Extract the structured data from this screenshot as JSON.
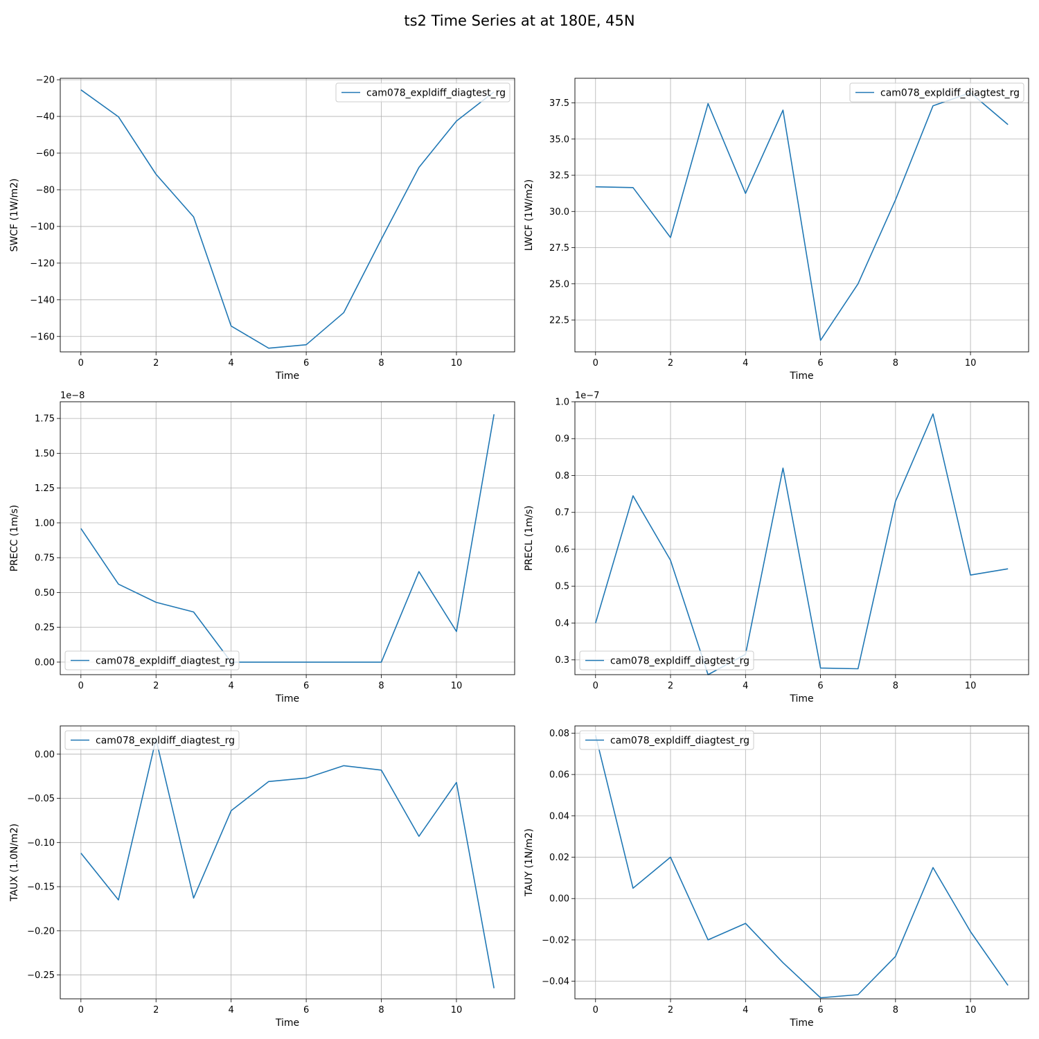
{
  "figure": {
    "title": "ts2 Time Series at at 180E, 45N"
  },
  "chart_data": [
    {
      "type": "line",
      "xlabel": "Time",
      "ylabel": "SWCF (1W/m2)",
      "y_inverted": true,
      "offset_text": "",
      "legend_loc": "upper right",
      "xlim": [
        -0.55,
        11.55
      ],
      "ylim": [
        -19.2,
        -168.4
      ],
      "xticks": [
        0,
        2,
        4,
        6,
        8,
        10
      ],
      "yticks": [
        -20,
        -40,
        -60,
        -80,
        -100,
        -120,
        -140,
        -160
      ],
      "ytick_labels": [
        "−20",
        "−40",
        "−60",
        "−80",
        "−100",
        "−120",
        "−140",
        "−160"
      ],
      "grid": true,
      "series": [
        {
          "name": "cam078_expldiff_diagtest_rg",
          "color": "#1f77b4",
          "x": [
            0,
            1,
            2,
            3,
            4,
            5,
            6,
            7,
            8,
            9,
            10,
            11
          ],
          "y": [
            -25.5,
            -40.2,
            -71.5,
            -94.8,
            -154.3,
            -166.4,
            -164.5,
            -147.0,
            -107.0,
            -67.8,
            -42.5,
            -26.6
          ]
        }
      ]
    },
    {
      "type": "line",
      "xlabel": "Time",
      "ylabel": "LWCF (1W/m2)",
      "y_inverted": true,
      "offset_text": "",
      "legend_loc": "upper right",
      "xlim": [
        -0.55,
        11.55
      ],
      "ylim": [
        39.2,
        20.3
      ],
      "xticks": [
        0,
        2,
        4,
        6,
        8,
        10
      ],
      "yticks": [
        22.5,
        25.0,
        27.5,
        30.0,
        32.5,
        35.0,
        37.5
      ],
      "ytick_labels": [
        "22.5",
        "25.0",
        "27.5",
        "30.0",
        "32.5",
        "35.0",
        "37.5"
      ],
      "grid": true,
      "series": [
        {
          "name": "cam078_expldiff_diagtest_rg",
          "color": "#1f77b4",
          "x": [
            0,
            1,
            2,
            3,
            4,
            5,
            6,
            7,
            8,
            9,
            10,
            11
          ],
          "y": [
            31.7,
            31.65,
            28.2,
            37.45,
            31.25,
            37.0,
            21.1,
            25.0,
            30.8,
            37.3,
            38.2,
            36.0
          ]
        }
      ]
    },
    {
      "type": "line",
      "xlabel": "Time",
      "ylabel": "PRECC (1m/s)",
      "y_inverted": true,
      "offset_text": "1e−8",
      "legend_loc": "lower left",
      "xlim": [
        -0.55,
        11.55
      ],
      "ylim": [
        1.87,
        -0.09
      ],
      "xticks": [
        0,
        2,
        4,
        6,
        8,
        10
      ],
      "yticks": [
        0.0,
        0.25,
        0.5,
        0.75,
        1.0,
        1.25,
        1.5,
        1.75
      ],
      "ytick_labels": [
        "0.00",
        "0.25",
        "0.50",
        "0.75",
        "1.00",
        "1.25",
        "1.50",
        "1.75"
      ],
      "grid": true,
      "series": [
        {
          "name": "cam078_expldiff_diagtest_rg",
          "color": "#1f77b4",
          "x": [
            0,
            1,
            2,
            3,
            4,
            5,
            6,
            7,
            8,
            9,
            10,
            11
          ],
          "y": [
            0.96,
            0.56,
            0.43,
            0.36,
            0.0,
            0.0,
            0.0,
            0.0,
            0.0,
            0.65,
            0.22,
            1.78
          ]
        }
      ]
    },
    {
      "type": "line",
      "xlabel": "Time",
      "ylabel": "PRECL (1m/s)",
      "y_inverted": true,
      "offset_text": "1e−7",
      "legend_loc": "lower left",
      "xlim": [
        -0.55,
        11.55
      ],
      "ylim": [
        1.0,
        0.26
      ],
      "xticks": [
        0,
        2,
        4,
        6,
        8,
        10
      ],
      "yticks": [
        0.3,
        0.4,
        0.5,
        0.6,
        0.7,
        0.8,
        0.9,
        1.0
      ],
      "ytick_labels": [
        "0.3",
        "0.4",
        "0.5",
        "0.6",
        "0.7",
        "0.8",
        "0.9",
        "1.0"
      ],
      "grid": true,
      "series": [
        {
          "name": "cam078_expldiff_diagtest_rg",
          "color": "#1f77b4",
          "x": [
            0,
            1,
            2,
            3,
            4,
            5,
            6,
            7,
            8,
            9,
            10,
            11
          ],
          "y": [
            0.4,
            0.745,
            0.57,
            0.26,
            0.315,
            0.82,
            0.278,
            0.276,
            0.73,
            0.967,
            0.53,
            0.547
          ]
        }
      ]
    },
    {
      "type": "line",
      "xlabel": "Time",
      "ylabel": "TAUX (1.0N/m2)",
      "y_inverted": true,
      "offset_text": "",
      "legend_loc": "upper left",
      "xlim": [
        -0.55,
        11.55
      ],
      "ylim": [
        0.032,
        -0.277
      ],
      "xticks": [
        0,
        2,
        4,
        6,
        8,
        10
      ],
      "yticks": [
        0.0,
        -0.05,
        -0.1,
        -0.15,
        -0.2,
        -0.25
      ],
      "ytick_labels": [
        "0.00",
        "−0.05",
        "−0.10",
        "−0.15",
        "−0.20",
        "−0.25"
      ],
      "grid": true,
      "series": [
        {
          "name": "cam078_expldiff_diagtest_rg",
          "color": "#1f77b4",
          "x": [
            0,
            1,
            2,
            3,
            4,
            5,
            6,
            7,
            8,
            9,
            10,
            11
          ],
          "y": [
            -0.112,
            -0.165,
            0.017,
            -0.163,
            -0.064,
            -0.031,
            -0.027,
            -0.013,
            -0.018,
            -0.093,
            -0.032,
            -0.265
          ]
        }
      ]
    },
    {
      "type": "line",
      "xlabel": "Time",
      "ylabel": "TAUY (1N/m2)",
      "y_inverted": true,
      "offset_text": "",
      "legend_loc": "upper left",
      "xlim": [
        -0.55,
        11.55
      ],
      "ylim": [
        0.0835,
        -0.0485
      ],
      "xticks": [
        0,
        2,
        4,
        6,
        8,
        10
      ],
      "yticks": [
        0.08,
        0.06,
        0.04,
        0.02,
        0.0,
        -0.02,
        -0.04
      ],
      "ytick_labels": [
        "0.08",
        "0.06",
        "0.04",
        "0.02",
        "0.00",
        "−0.02",
        "−0.04"
      ],
      "grid": true,
      "series": [
        {
          "name": "cam078_expldiff_diagtest_rg",
          "color": "#1f77b4",
          "x": [
            0,
            1,
            2,
            3,
            4,
            5,
            6,
            7,
            8,
            9,
            10,
            11
          ],
          "y": [
            0.079,
            0.005,
            0.02,
            -0.02,
            -0.012,
            -0.031,
            -0.048,
            -0.0465,
            -0.028,
            0.015,
            -0.016,
            -0.042
          ]
        }
      ]
    }
  ]
}
